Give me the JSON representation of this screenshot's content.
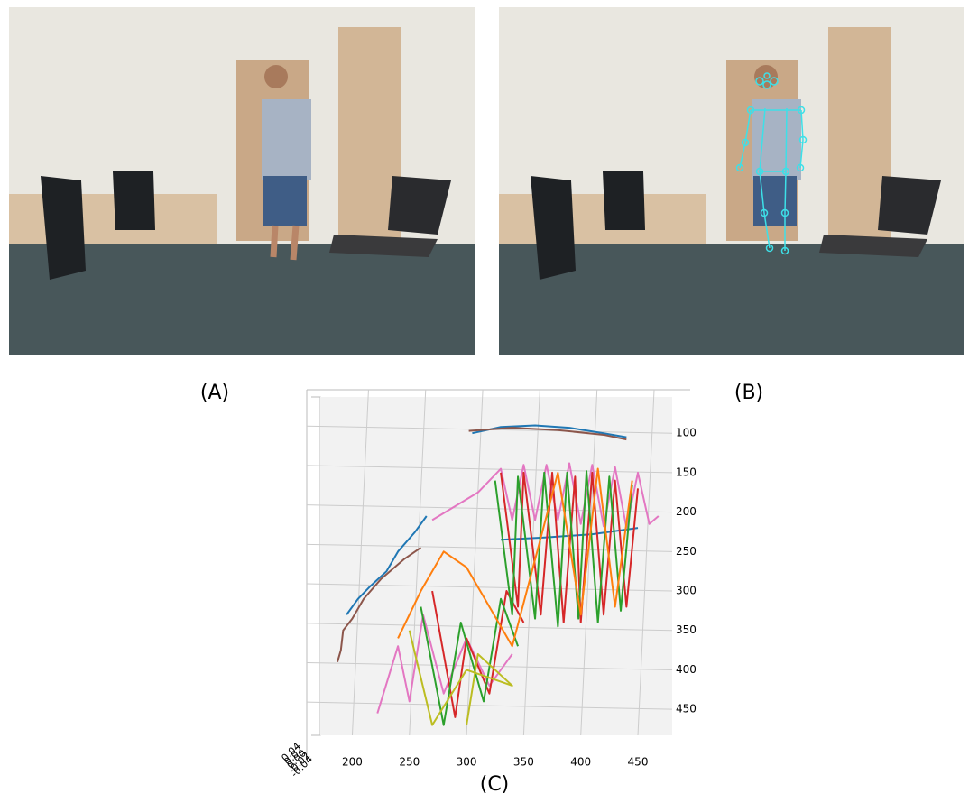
{
  "panels": {
    "a": "(A)",
    "b": "(B)",
    "c": "(C)"
  },
  "chart_data": {
    "type": "line",
    "xlim": [
      172,
      480
    ],
    "ylim": [
      54,
      483
    ],
    "y_inverted": true,
    "grid": true,
    "xticks": [
      200,
      250,
      300,
      350,
      400,
      450
    ],
    "yticks": [
      100,
      150,
      200,
      250,
      300,
      350,
      400,
      450
    ],
    "zticks": [
      -0.04,
      -0.02,
      {
        "value": 0,
        "label": "0.00"
      },
      0.02,
      0.04
    ],
    "series": [
      {
        "color": "#1f77b4",
        "x": [
          305,
          330,
          360,
          390,
          420,
          440,
          null,
          195,
          205,
          215,
          230,
          240,
          255,
          265,
          null,
          330,
          370,
          410,
          450
        ],
        "values": [
          100,
          92,
          90,
          93,
          100,
          105,
          null,
          330,
          310,
          295,
          275,
          250,
          225,
          205,
          null,
          235,
          232,
          228,
          220
        ]
      },
      {
        "color": "#8c564b",
        "x": [
          187,
          190,
          192,
          200,
          210,
          225,
          245,
          260,
          null,
          302,
          340,
          380,
          420,
          440
        ],
        "values": [
          390,
          375,
          350,
          335,
          310,
          285,
          260,
          245,
          null,
          97,
          93,
          96,
          102,
          108
        ]
      },
      {
        "color": "#e377c2",
        "x": [
          270,
          310,
          330,
          340,
          350,
          360,
          370,
          380,
          390,
          400,
          410,
          420,
          430,
          440,
          450,
          460,
          468,
          null,
          222,
          240,
          250,
          262,
          280,
          300,
          320,
          340
        ],
        "values": [
          210,
          175,
          145,
          210,
          140,
          210,
          140,
          210,
          138,
          215,
          140,
          218,
          143,
          220,
          150,
          215,
          205,
          null,
          455,
          370,
          440,
          330,
          430,
          360,
          420,
          380
        ]
      },
      {
        "color": "#d62728",
        "x": [
          330,
          345,
          350,
          365,
          375,
          385,
          395,
          400,
          410,
          420,
          430,
          440,
          450,
          null,
          270,
          290,
          300,
          320,
          335,
          350
        ],
        "values": [
          150,
          320,
          150,
          330,
          150,
          340,
          155,
          340,
          150,
          330,
          160,
          320,
          170,
          null,
          300,
          460,
          360,
          430,
          300,
          340
        ]
      },
      {
        "color": "#2ca02c",
        "x": [
          325,
          340,
          345,
          360,
          368,
          380,
          388,
          398,
          405,
          415,
          425,
          435,
          445,
          null,
          260,
          280,
          295,
          315,
          330,
          345
        ],
        "values": [
          160,
          330,
          155,
          335,
          150,
          345,
          150,
          335,
          148,
          340,
          155,
          325,
          165,
          null,
          320,
          470,
          340,
          440,
          310,
          370
        ]
      },
      {
        "color": "#ff7f0e",
        "x": [
          240,
          260,
          280,
          300,
          320,
          340,
          380,
          400,
          415,
          430,
          445
        ],
        "values": [
          360,
          300,
          250,
          270,
          320,
          370,
          150,
          330,
          145,
          320,
          160
        ]
      },
      {
        "color": "#bcbd22",
        "x": [
          250,
          270,
          300,
          340,
          310,
          300
        ],
        "values": [
          350,
          470,
          400,
          420,
          380,
          470
        ]
      }
    ]
  }
}
